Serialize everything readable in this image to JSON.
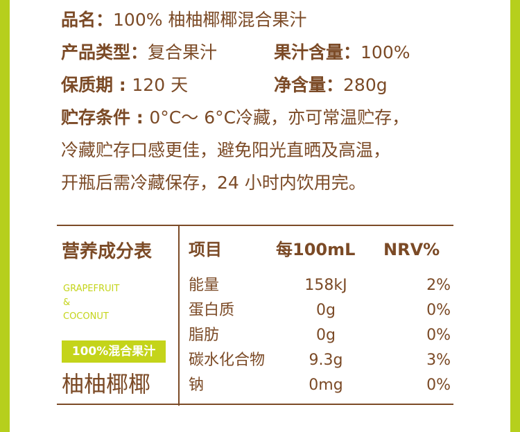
{
  "colors": {
    "brown": "#7b4a26",
    "green": "#b6cf1d"
  },
  "info": {
    "name_label": "品名：",
    "name_value": "100% 柚柚椰椰混合果汁",
    "type_label": "产品类型：",
    "type_value": "复合果汁",
    "juice_label": "果汁含量：",
    "juice_value": "100%",
    "shelf_label": "保质期 : ",
    "shelf_value": "120 天",
    "net_label": "净含量：",
    "net_value": "280g",
    "storage_label": "贮存条件 : ",
    "storage_line1": "0°C～ 6°C冷藏，亦可常温贮存，",
    "storage_line2": "冷藏贮存口感更佳，避免阳光直晒及高温，",
    "storage_line3": "开瓶后需冷藏保存，24 小时内饮用完。"
  },
  "nutrition": {
    "title": "营养成分表",
    "en1": "GRAPEFRUIT",
    "en2": "&",
    "en3": "COCONUT",
    "badge": "100%混合果汁",
    "product": "柚柚椰椰",
    "headers": [
      "项目",
      "每100mL",
      "NRV%"
    ],
    "rows": [
      [
        "能量",
        "158kJ",
        "2%"
      ],
      [
        "蛋白质",
        "0g",
        "0%"
      ],
      [
        "脂肪",
        "0g",
        "0%"
      ],
      [
        "碳水化合物",
        "9.3g",
        "3%"
      ],
      [
        "钠",
        "0mg",
        "0%"
      ]
    ]
  }
}
